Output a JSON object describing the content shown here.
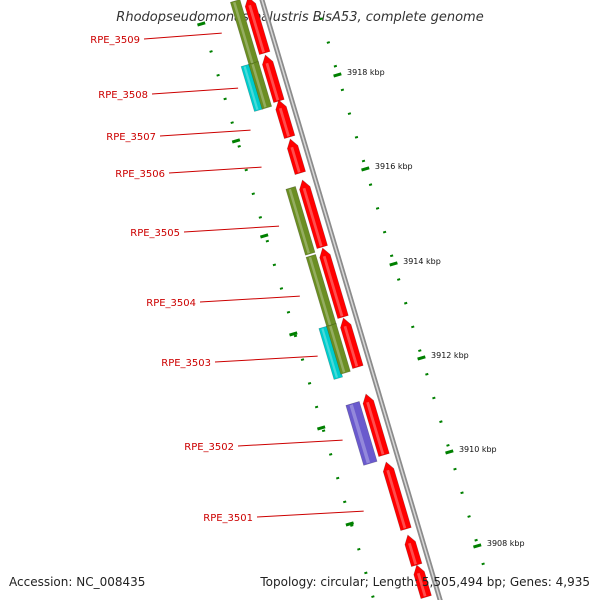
{
  "title": "Rhodopseudomonas palustris BisA53, complete genome",
  "accession": "Accession: NC_008435",
  "topology": "Topology: circular; Length: 5,505,494 bp; Genes: 4,935",
  "colors": {
    "forward_cds": "#ff0000",
    "reverse_cds": "#6b8e23",
    "category_cyan": "#00cccc",
    "category_purple": "#6a5acd",
    "backbone": "#999999",
    "tick": "#008000",
    "label": "#cc0000"
  },
  "ruler_labels": [
    "3918 kbp",
    "3916 kbp",
    "3914 kbp",
    "3912 kbp",
    "3910 kbp",
    "3908 kbp"
  ],
  "gene_labels": [
    "RPE_3509",
    "RPE_3508",
    "RPE_3507",
    "RPE_3506",
    "RPE_3505",
    "RPE_3504",
    "RPE_3503",
    "RPE_3502",
    "RPE_3501"
  ]
}
